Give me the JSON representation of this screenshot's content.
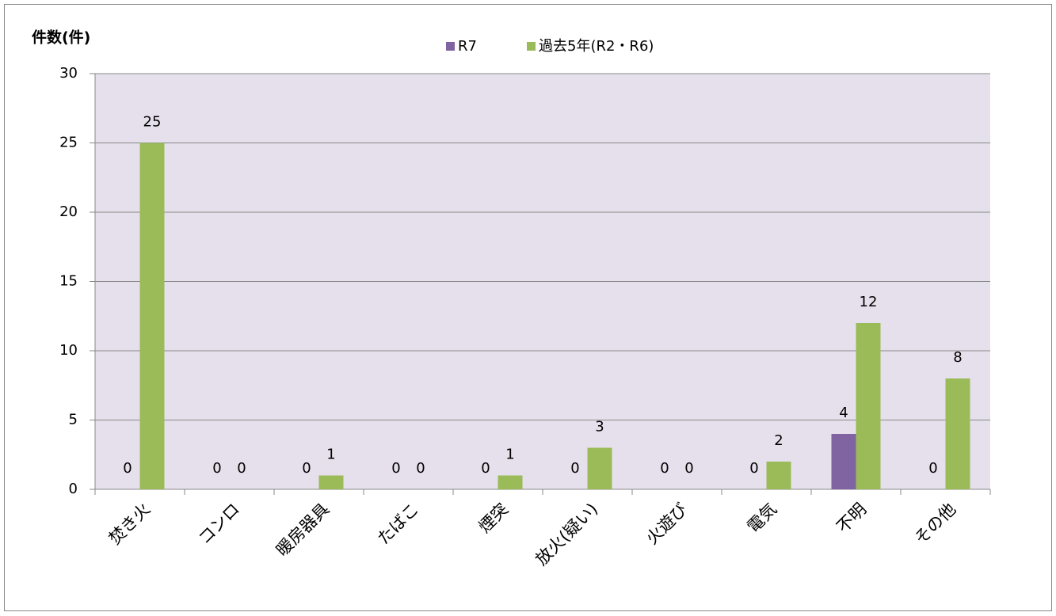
{
  "chart_data": {
    "type": "bar",
    "y_label": "件数(件)",
    "categories": [
      "焚き火",
      "コンロ",
      "暖房器具",
      "たばこ",
      "煙突",
      "放火(疑い)",
      "火遊び",
      "電気",
      "不明",
      "その他"
    ],
    "series": [
      {
        "name": "R7",
        "color": "#8064a2",
        "values": [
          0,
          0,
          0,
          0,
          0,
          0,
          0,
          0,
          4,
          0
        ]
      },
      {
        "name": "過去5年(R2・R6)",
        "color": "#9bbb59",
        "values": [
          25,
          0,
          1,
          0,
          1,
          3,
          0,
          2,
          12,
          8
        ]
      }
    ],
    "ylim": [
      0,
      30
    ],
    "yticks": [
      0,
      5,
      10,
      15,
      20,
      25,
      30
    ],
    "grid": true,
    "legend": "top"
  }
}
